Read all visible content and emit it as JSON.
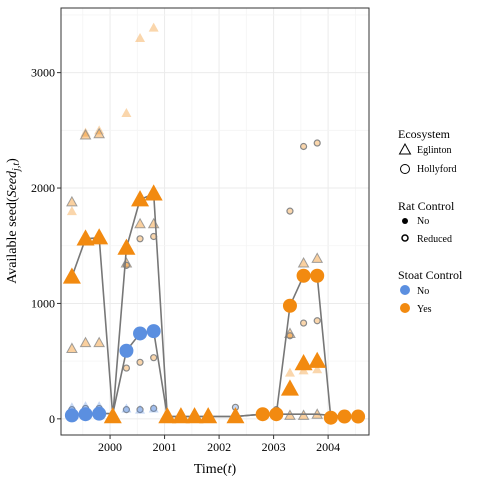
{
  "chart_data": {
    "type": "scatter",
    "title": "",
    "xlabel": "Time(t)",
    "ylabel": "Available seed(Seed_j,t)",
    "xlim": [
      1999.1,
      2004.75
    ],
    "ylim": [
      -140,
      3560
    ],
    "x_ticks": [
      2000,
      2001,
      2002,
      2003,
      2004
    ],
    "y_ticks": [
      0,
      1000,
      2000,
      3000
    ],
    "grid": true,
    "legend_placement": "right",
    "legend": {
      "ecosystem": {
        "title": "Ecosystem",
        "items": [
          "Eglinton",
          "Hollyford"
        ]
      },
      "rat_control": {
        "title": "Rat Control",
        "items": [
          "No",
          "Reduced"
        ]
      },
      "stoat_control": {
        "title": "Stoat Control",
        "items": [
          "No",
          "Yes"
        ]
      }
    },
    "colors": {
      "No": "#5b8fe0",
      "Yes": "#f28a10",
      "line": "#777777"
    },
    "mean_lines": [
      {
        "stoat": "No",
        "points": [
          [
            1999.3,
            30
          ],
          [
            1999.55,
            40
          ],
          [
            1999.8,
            45
          ],
          [
            2000.05,
            45
          ],
          [
            2000.3,
            590
          ],
          [
            2000.55,
            740
          ],
          [
            2000.8,
            760
          ],
          [
            2001.05,
            20
          ],
          [
            2001.3,
            20
          ],
          [
            2001.55,
            20
          ],
          [
            2001.8,
            20
          ],
          [
            2002.3,
            20
          ],
          [
            2002.8,
            40
          ],
          [
            2003.05,
            40
          ],
          [
            2003.3,
            40
          ],
          [
            2003.8,
            40
          ],
          [
            2004.05,
            30
          ],
          [
            2004.3,
            20
          ],
          [
            2004.55,
            20
          ]
        ]
      },
      {
        "stoat": "Yes",
        "points": [
          [
            1999.3,
            1230
          ],
          [
            1999.55,
            1560
          ],
          [
            1999.8,
            1570
          ],
          [
            2000.05,
            20
          ],
          [
            2000.3,
            1480
          ],
          [
            2000.55,
            1900
          ],
          [
            2000.8,
            1950
          ],
          [
            2001.05,
            20
          ],
          [
            2001.3,
            20
          ],
          [
            2001.55,
            20
          ],
          [
            2001.8,
            20
          ],
          [
            2002.3,
            20
          ],
          [
            2002.8,
            40
          ],
          [
            2003.05,
            40
          ],
          [
            2003.3,
            980
          ],
          [
            2003.55,
            1240
          ],
          [
            2003.8,
            1240
          ],
          [
            2004.05,
            10
          ],
          [
            2004.3,
            20
          ],
          [
            2004.55,
            20
          ]
        ]
      }
    ],
    "series": [
      {
        "ecosystem": "Eglinton",
        "rat": "No",
        "stoat": "Yes",
        "points": [
          [
            1999.3,
            1800
          ],
          [
            1999.55,
            2480
          ],
          [
            1999.8,
            2500
          ],
          [
            2000.3,
            2650
          ],
          [
            2000.55,
            3300
          ],
          [
            2000.8,
            3390
          ],
          [
            2003.3,
            400
          ],
          [
            2003.55,
            420
          ],
          [
            2003.8,
            430
          ]
        ]
      },
      {
        "ecosystem": "Eglinton",
        "rat": "Reduced",
        "stoat": "Yes",
        "points": [
          [
            1999.3,
            1880
          ],
          [
            1999.55,
            2460
          ],
          [
            1999.8,
            2470
          ],
          [
            1999.3,
            610
          ],
          [
            1999.55,
            660
          ],
          [
            1999.8,
            660
          ],
          [
            2000.3,
            1350
          ],
          [
            2000.55,
            1690
          ],
          [
            2000.8,
            1690
          ],
          [
            2003.3,
            740
          ],
          [
            2003.55,
            1350
          ],
          [
            2003.8,
            1390
          ],
          [
            2003.3,
            30
          ],
          [
            2003.55,
            30
          ],
          [
            2003.8,
            40
          ]
        ]
      },
      {
        "ecosystem": "Hollyford",
        "rat": "Reduced",
        "stoat": "Yes",
        "points": [
          [
            2003.3,
            1800
          ],
          [
            2003.55,
            2360
          ],
          [
            2003.8,
            2390
          ],
          [
            2003.3,
            720
          ],
          [
            2003.55,
            830
          ],
          [
            2003.8,
            850
          ],
          [
            2000.3,
            1330
          ],
          [
            2000.55,
            1560
          ],
          [
            2000.8,
            1580
          ],
          [
            2000.3,
            440
          ],
          [
            2000.55,
            490
          ],
          [
            2000.8,
            530
          ]
        ]
      },
      {
        "ecosystem": "Hollyford",
        "rat": "Reduced",
        "stoat": "No",
        "points": [
          [
            1999.3,
            80
          ],
          [
            1999.55,
            90
          ],
          [
            1999.8,
            90
          ],
          [
            2000.3,
            80
          ],
          [
            2000.55,
            80
          ],
          [
            2000.8,
            90
          ],
          [
            2002.3,
            100
          ],
          [
            2003.05,
            80
          ]
        ]
      },
      {
        "ecosystem": "Eglinton",
        "rat": "No",
        "stoat": "No",
        "points": [
          [
            1999.3,
            100
          ],
          [
            1999.55,
            110
          ],
          [
            1999.8,
            110
          ],
          [
            2000.3,
            90
          ],
          [
            2000.55,
            80
          ],
          [
            2000.8,
            90
          ]
        ]
      }
    ],
    "mean_markers": [
      {
        "stoat": "Yes",
        "shape": "triangle",
        "points": [
          [
            1999.3,
            1230
          ],
          [
            1999.55,
            1560
          ],
          [
            1999.8,
            1570
          ],
          [
            2000.05,
            20
          ],
          [
            2000.3,
            1480
          ],
          [
            2000.55,
            1900
          ],
          [
            2000.8,
            1950
          ],
          [
            2001.05,
            20
          ],
          [
            2001.3,
            20
          ],
          [
            2001.55,
            20
          ],
          [
            2001.8,
            20
          ],
          [
            2002.3,
            20
          ],
          [
            2003.3,
            260
          ],
          [
            2003.55,
            480
          ],
          [
            2003.8,
            500
          ]
        ]
      },
      {
        "stoat": "Yes",
        "shape": "circle",
        "points": [
          [
            2002.8,
            40
          ],
          [
            2003.05,
            40
          ],
          [
            2003.3,
            980
          ],
          [
            2003.55,
            1240
          ],
          [
            2003.8,
            1240
          ],
          [
            2004.05,
            10
          ],
          [
            2004.3,
            20
          ],
          [
            2004.55,
            20
          ]
        ]
      },
      {
        "stoat": "No",
        "shape": "circle",
        "points": [
          [
            1999.3,
            30
          ],
          [
            1999.55,
            40
          ],
          [
            1999.8,
            45
          ],
          [
            2000.3,
            590
          ],
          [
            2000.55,
            740
          ],
          [
            2000.8,
            760
          ]
        ]
      }
    ]
  }
}
